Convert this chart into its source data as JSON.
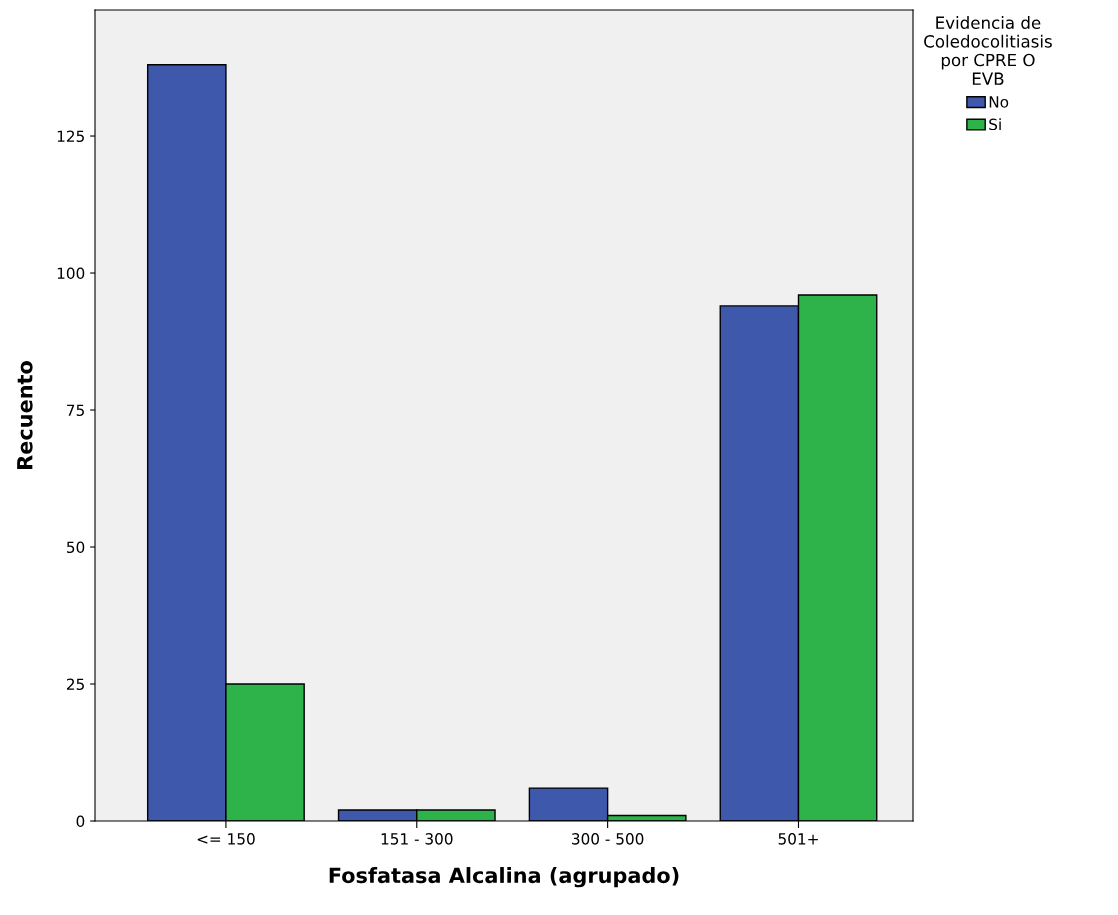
{
  "chart_data": {
    "type": "bar",
    "xlabel": "Fosfatasa Alcalina (agrupado)",
    "ylabel": "Recuento",
    "legend_title": "Evidencia de\nColedocolitiasis\npor CPRE O\nEVB",
    "categories": [
      "<= 150",
      "151 - 300",
      "300 - 500",
      "501+"
    ],
    "series": [
      {
        "name": "No",
        "color": "#3e58ac",
        "values": [
          138,
          2,
          6,
          94
        ]
      },
      {
        "name": "Si",
        "color": "#2db34a",
        "values": [
          25,
          2,
          1,
          96
        ]
      }
    ],
    "ylim": [
      0,
      148
    ],
    "yticks": [
      0,
      25,
      50,
      75,
      100,
      125
    ],
    "grid": false,
    "legend": "top right"
  }
}
